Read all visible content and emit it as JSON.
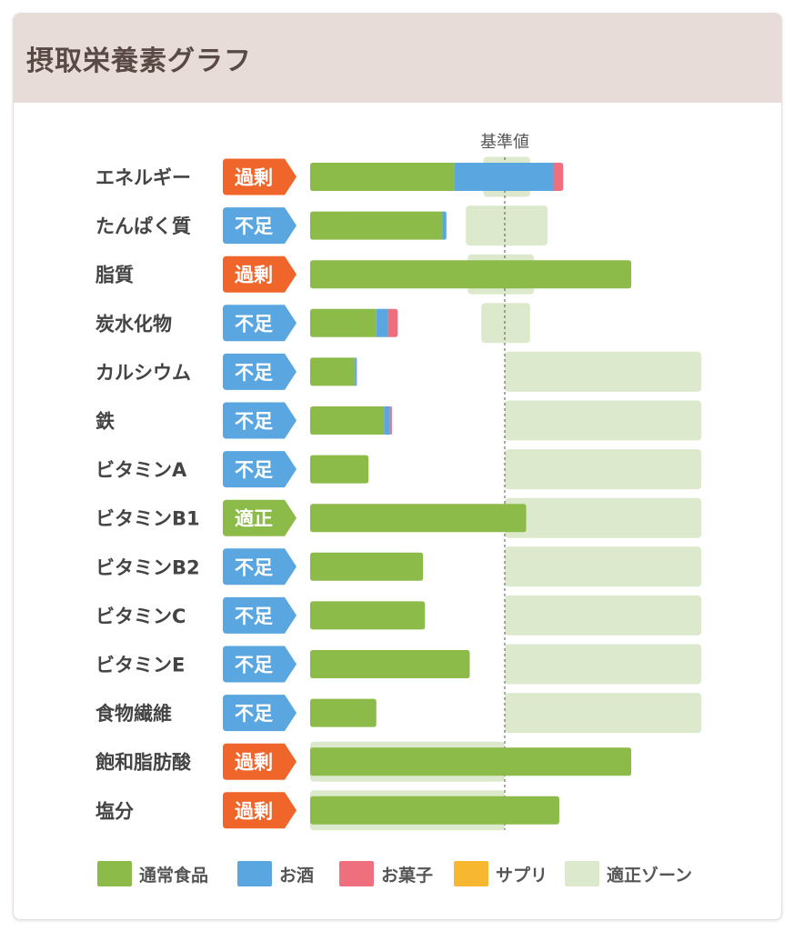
{
  "header": {
    "title": "摂取栄養素グラフ"
  },
  "colors": {
    "food": "#8cbb4a",
    "alcohol": "#5aa6e0",
    "snacks": "#ef6f7e",
    "supplement": "#f7b731",
    "zone": "#dde9cc",
    "excess": "#f0652a",
    "lack": "#5aa6e0",
    "proper": "#8cbb4a"
  },
  "chart_data": {
    "type": "bar",
    "orientation": "horizontal",
    "stacked": true,
    "unit": "percent of reference value",
    "reference_line": {
      "label": "基準値",
      "value": 100
    },
    "xlim": [
      0,
      200
    ],
    "categories": [
      "エネルギー",
      "たんぱく質",
      "脂質",
      "炭水化物",
      "カルシウム",
      "鉄",
      "ビタミンA",
      "ビタミンB1",
      "ビタミンB2",
      "ビタミンC",
      "ビタミンE",
      "食物繊維",
      "飽和脂肪酸",
      "塩分"
    ],
    "status": [
      "過剰",
      "不足",
      "過剰",
      "不足",
      "不足",
      "不足",
      "不足",
      "適正",
      "不足",
      "不足",
      "不足",
      "不足",
      "過剰",
      "過剰"
    ],
    "series": [
      {
        "name": "通常食品",
        "color_key": "food",
        "values": [
          74,
          68,
          165,
          34,
          23,
          38,
          30,
          111,
          58,
          59,
          82,
          34,
          165,
          128
        ]
      },
      {
        "name": "お酒",
        "color_key": "alcohol",
        "values": [
          51,
          2,
          0,
          6,
          1,
          3,
          0,
          0,
          0,
          0,
          0,
          0,
          0,
          0
        ]
      },
      {
        "name": "お菓子",
        "color_key": "snacks",
        "values": [
          5,
          0,
          0,
          5,
          0,
          1,
          0,
          0,
          0,
          0,
          0,
          0,
          0,
          0
        ]
      },
      {
        "name": "サプリ",
        "color_key": "supplement",
        "values": [
          0,
          0,
          0,
          0,
          0,
          0,
          0,
          0,
          0,
          0,
          0,
          0,
          0,
          0
        ]
      }
    ],
    "optimal_zone": [
      [
        89,
        113
      ],
      [
        80,
        122
      ],
      [
        81,
        115
      ],
      [
        88,
        113
      ],
      [
        100,
        201
      ],
      [
        100,
        201
      ],
      [
        100,
        201
      ],
      [
        100,
        201
      ],
      [
        100,
        201
      ],
      [
        100,
        201
      ],
      [
        100,
        201
      ],
      [
        100,
        201
      ],
      [
        0,
        100
      ],
      [
        0,
        100
      ]
    ],
    "legend": [
      {
        "label": "通常食品",
        "color_key": "food"
      },
      {
        "label": "お酒",
        "color_key": "alcohol"
      },
      {
        "label": "お菓子",
        "color_key": "snacks"
      },
      {
        "label": "サプリ",
        "color_key": "supplement"
      },
      {
        "label": "適正ゾーン",
        "color_key": "zone"
      }
    ]
  }
}
